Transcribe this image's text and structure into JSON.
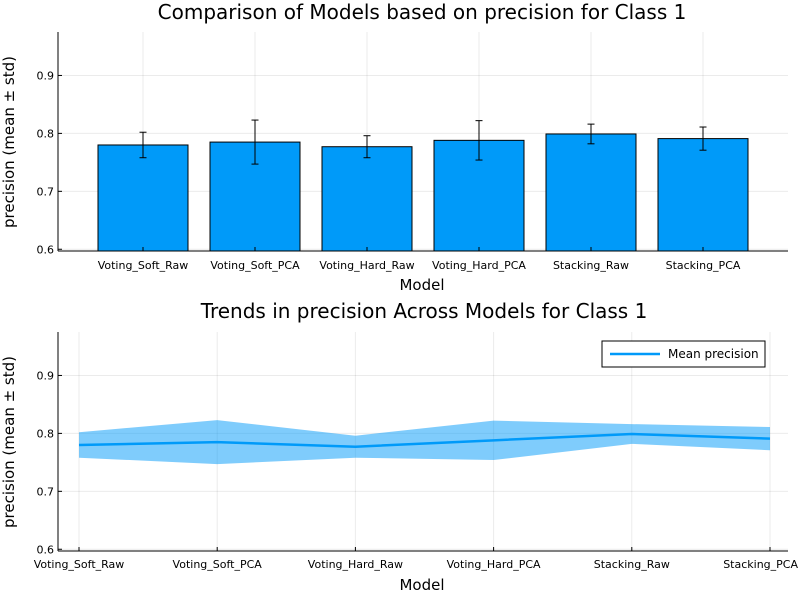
{
  "chart_data": [
    {
      "type": "bar",
      "title": "Comparison of Models based on precision for Class 1",
      "xlabel": "Model",
      "ylabel": "precision (mean ± std)",
      "categories": [
        "Voting_Soft_Raw",
        "Voting_Soft_PCA",
        "Voting_Hard_Raw",
        "Voting_Hard_PCA",
        "Stacking_Raw",
        "Stacking_PCA"
      ],
      "values": [
        0.78,
        0.785,
        0.777,
        0.788,
        0.799,
        0.791
      ],
      "errors": [
        0.022,
        0.038,
        0.019,
        0.034,
        0.017,
        0.02
      ],
      "ylim": [
        0.597,
        0.975
      ],
      "yticks": [
        0.6,
        0.7,
        0.8,
        0.9
      ],
      "grid": true,
      "color": "#009AF9"
    },
    {
      "type": "line",
      "title": "Trends in precision Across Models for Class 1",
      "xlabel": "Model",
      "ylabel": "precision (mean ± std)",
      "categories": [
        "Voting_Soft_Raw",
        "Voting_Soft_PCA",
        "Voting_Hard_Raw",
        "Voting_Hard_PCA",
        "Stacking_Raw",
        "Stacking_PCA"
      ],
      "series": [
        {
          "name": "Mean precision",
          "values": [
            0.78,
            0.785,
            0.777,
            0.788,
            0.799,
            0.791
          ],
          "std": [
            0.022,
            0.038,
            0.019,
            0.034,
            0.017,
            0.02
          ]
        }
      ],
      "ylim": [
        0.597,
        0.975
      ],
      "yticks": [
        0.6,
        0.7,
        0.8,
        0.9
      ],
      "grid": true,
      "legend_position": "top-right",
      "color": "#009AF9"
    }
  ]
}
